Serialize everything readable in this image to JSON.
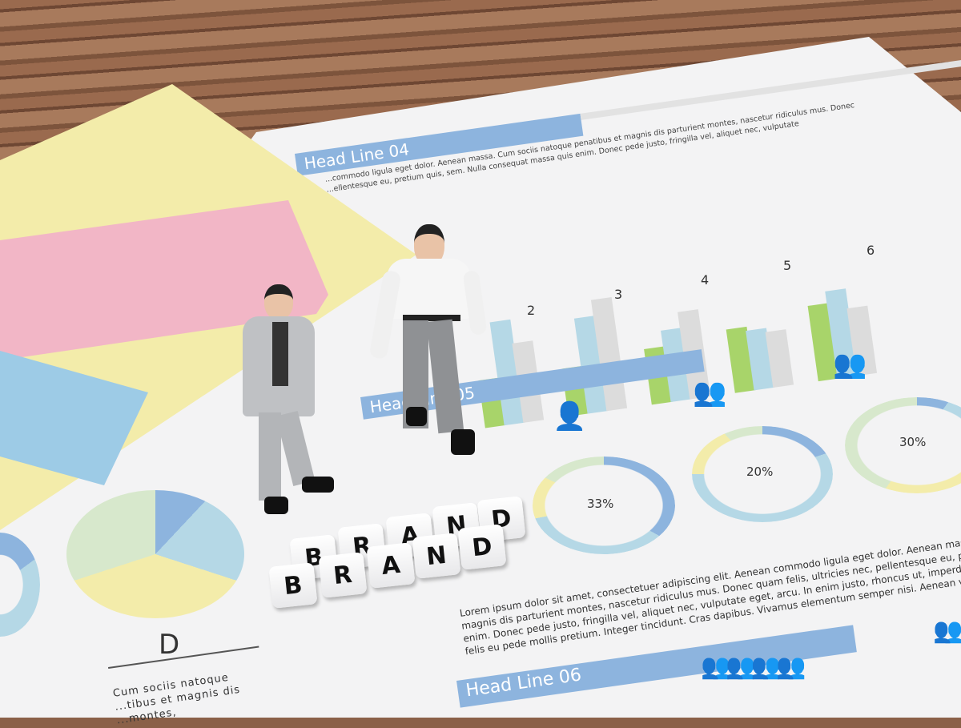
{
  "headlines": {
    "h04": "Head Line 04",
    "h05": "Head Line 05",
    "h06": "Head Line 06"
  },
  "para04": [
    "...commodo ligula eget dolor. Aenean massa. Cum sociis natoque penatibus et magnis dis parturient montes, nascetur ridiculus mus. Donec",
    "...ellentesque eu, pretium quis, sem. Nulla consequat massa quis enim. Donec pede justo, fringilla vel, aliquet nec, vulputate"
  ],
  "bar_numbers": [
    "2",
    "3",
    "4",
    "5",
    "6"
  ],
  "donuts": [
    "33%",
    "20%",
    "30%"
  ],
  "pie_label": "D",
  "pie_text": [
    "Cum sociis natoque",
    "...tibus et magnis dis",
    "...montes,"
  ],
  "lorem": [
    "Lorem ipsum dolor sit amet, consectetuer adipiscing elit. Aenean commodo ligula eget dolor. Aenean massa",
    "magnis dis parturient montes, nascetur ridiculus mus. Donec quam felis, ultricies nec, pellentesque eu, pretium",
    "enim. Donec pede justo, fringilla vel, aliquet nec, vulputate eget, arcu. In enim justo, rhoncus ut, imperdiet",
    "felis eu pede mollis pretium. Integer tincidunt. Cras dapibus. Vivamus elementum semper nisi. Aenean vu"
  ],
  "blocks": {
    "top": [
      "B",
      "R",
      "A",
      "N",
      "D"
    ],
    "bottom": [
      "B",
      "R",
      "A",
      "N",
      "D"
    ]
  },
  "colors": {
    "blue": "#8db4de",
    "light_blue": "#b5d8e6",
    "green": "#a8d46a",
    "grey": "#dcdcdc",
    "yellow": "#f3ecaa",
    "pink": "#f2b6c6"
  }
}
